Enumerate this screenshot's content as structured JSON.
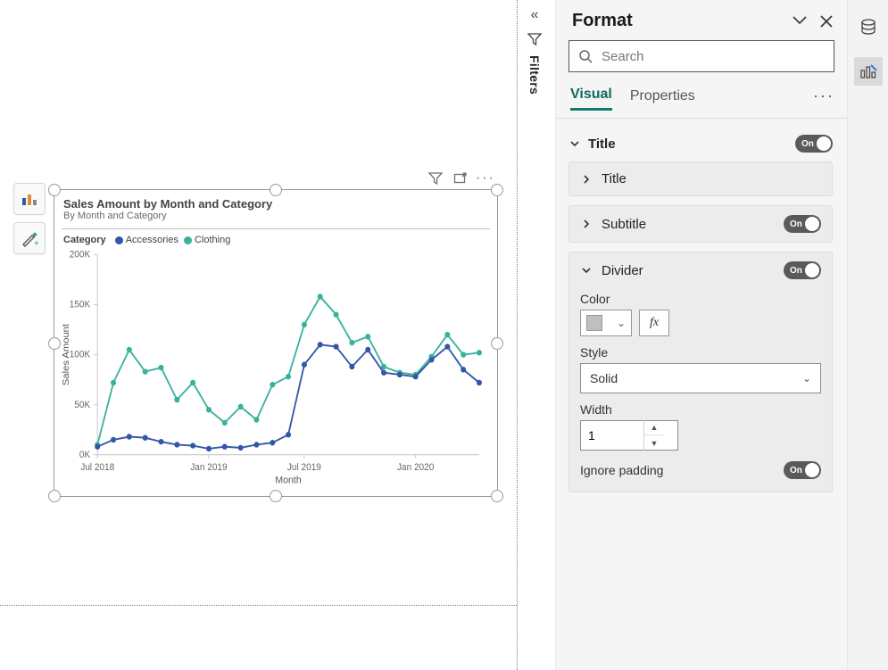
{
  "canvas": {
    "visual": {
      "title": "Sales Amount by Month and Category",
      "subtitle": "By Month and Category",
      "legend_title": "Category",
      "series": [
        {
          "name": "Accessories",
          "color": "#3257a8"
        },
        {
          "name": "Clothing",
          "color": "#38b29d"
        }
      ]
    }
  },
  "chart": {
    "type": "line",
    "xlabel": "Month",
    "ylabel": "Sales Amount",
    "ylim": [
      0,
      200
    ],
    "ytick_step": 50,
    "ytick_format_suffix": "K",
    "x_ticks": [
      {
        "index": 0,
        "label": "Jul 2018"
      },
      {
        "index": 7,
        "label": "Jan 2019"
      },
      {
        "index": 13,
        "label": "Jul 2019"
      },
      {
        "index": 20,
        "label": "Jan 2020"
      }
    ],
    "n_points": 25,
    "accessories_values": [
      8,
      15,
      18,
      17,
      13,
      10,
      9,
      6,
      8,
      7,
      10,
      12,
      20,
      90,
      110,
      108,
      88,
      105,
      82,
      80,
      78,
      95,
      108,
      85,
      72
    ],
    "clothing_values": [
      10,
      72,
      105,
      83,
      87,
      55,
      72,
      45,
      32,
      48,
      35,
      70,
      78,
      130,
      158,
      140,
      112,
      118,
      88,
      82,
      80,
      98,
      120,
      100,
      102
    ],
    "line_width": 1.8,
    "marker_radius": 3,
    "background_color": "#ffffff",
    "grid_color": "#c8c8c8",
    "axis_font_size": 10
  },
  "filters_rail": {
    "label": "Filters"
  },
  "format_pane": {
    "title": "Format",
    "search_placeholder": "Search",
    "tabs": {
      "visual": "Visual",
      "properties": "Properties"
    },
    "sections": {
      "title": {
        "label": "Title",
        "on": "On"
      },
      "title_sub": {
        "label": "Title"
      },
      "subtitle": {
        "label": "Subtitle",
        "on": "On"
      },
      "divider": {
        "label": "Divider",
        "on": "On",
        "color_label": "Color",
        "color_value": "#bfbfbf",
        "style_label": "Style",
        "style_value": "Solid",
        "width_label": "Width",
        "width_value": "1",
        "ignore_padding_label": "Ignore padding",
        "ignore_padding_on": "On"
      }
    }
  }
}
